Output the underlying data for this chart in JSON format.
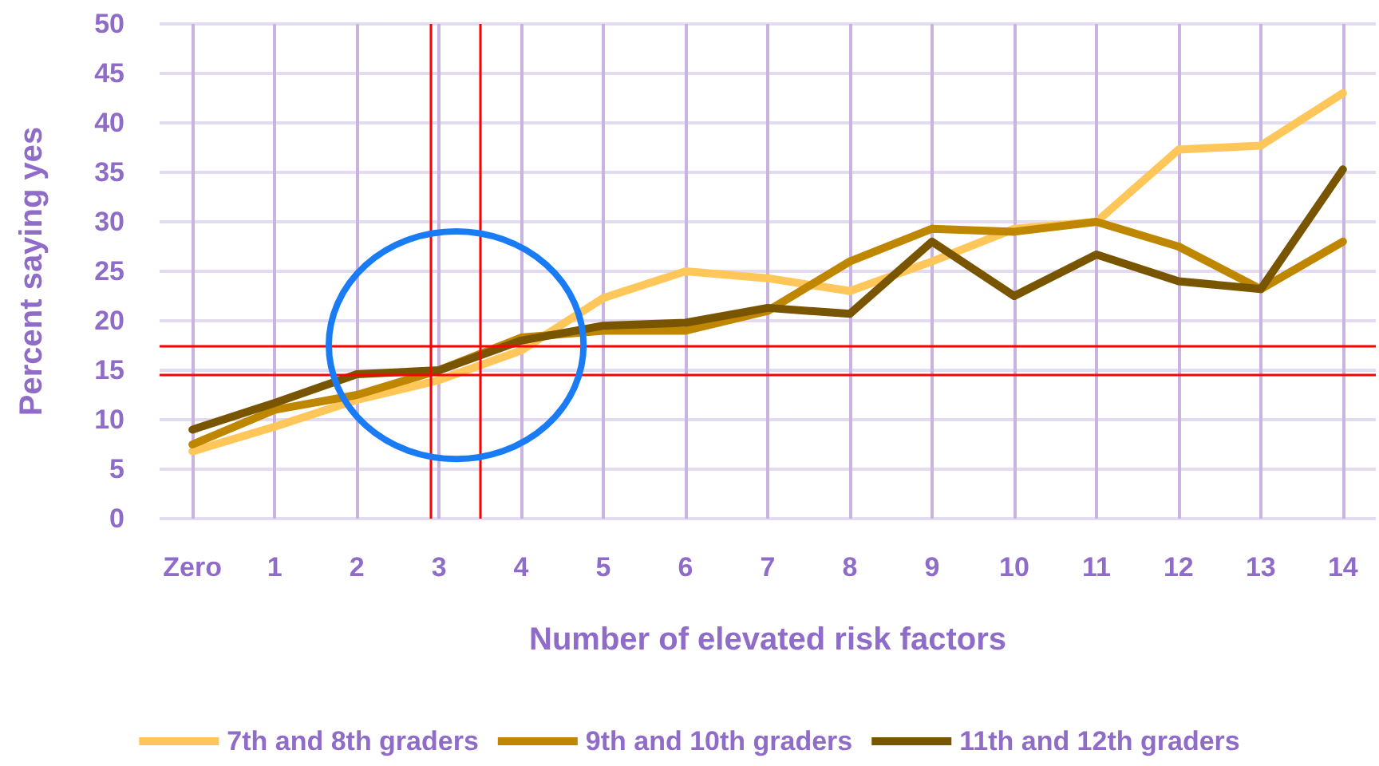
{
  "chart_data": {
    "type": "line",
    "xlabel": "Number of elevated risk factors",
    "ylabel": "Percent saying yes",
    "x": [
      0,
      1,
      2,
      3,
      4,
      5,
      6,
      7,
      8,
      9,
      10,
      11,
      12,
      13,
      14
    ],
    "xlim": [
      -0.4,
      14.4
    ],
    "xticks": [
      {
        "value": 0,
        "label": "Zero"
      },
      1,
      2,
      3,
      4,
      5,
      6,
      7,
      8,
      9,
      10,
      11,
      12,
      13,
      14
    ],
    "ylim": [
      0,
      50
    ],
    "yticks": [
      0,
      5,
      10,
      15,
      20,
      25,
      30,
      35,
      40,
      45,
      50
    ],
    "series": [
      {
        "name": "7th and 8th graders",
        "color": "#ffc65a",
        "values": [
          6.8,
          9.3,
          12,
          14,
          17,
          22.3,
          25,
          24.3,
          23,
          26,
          29.3,
          30,
          37.3,
          37.7,
          43
        ]
      },
      {
        "name": "9th and 10th graders",
        "color": "#bf8600",
        "values": [
          7.5,
          11,
          12.5,
          15,
          18.3,
          19,
          19,
          21,
          26,
          29.3,
          29,
          30,
          27.5,
          23.2,
          28
        ]
      },
      {
        "name": "11th and 12th graders",
        "color": "#7a5500",
        "values": [
          9,
          11.7,
          14.6,
          15,
          18,
          19.5,
          19.8,
          21.3,
          20.7,
          28,
          22.5,
          26.7,
          24,
          23.2,
          35.3
        ]
      }
    ],
    "ref_lines": [
      {
        "axis": "y",
        "value": 17.5,
        "color": "#ff0000"
      },
      {
        "axis": "y",
        "value": 14.5,
        "color": "#ff0000"
      },
      {
        "axis": "x",
        "value": 2.9,
        "color": "#ff0000"
      },
      {
        "axis": "x",
        "value": 3.5,
        "color": "#ff0000"
      }
    ],
    "grid": true,
    "legend": "bottom",
    "marker": "none",
    "line_style": "solid"
  }
}
